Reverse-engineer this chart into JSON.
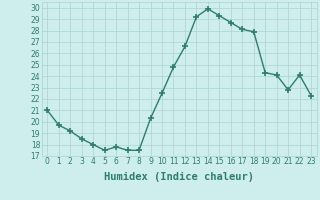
{
  "x": [
    0,
    1,
    2,
    3,
    4,
    5,
    6,
    7,
    8,
    9,
    10,
    11,
    12,
    13,
    14,
    15,
    16,
    17,
    18,
    19,
    20,
    21,
    22,
    23
  ],
  "y": [
    21,
    19.7,
    19.2,
    18.5,
    18.0,
    17.5,
    17.8,
    17.5,
    17.5,
    20.3,
    22.5,
    24.8,
    26.6,
    29.2,
    29.9,
    29.3,
    28.7,
    28.1,
    27.9,
    24.3,
    24.1,
    22.8,
    24.1,
    22.3
  ],
  "line_color": "#2e7d6b",
  "marker": "+",
  "marker_size": 4,
  "bg_color": "#ceeeed",
  "grid_color": "#aad4d0",
  "xlabel": "Humidex (Indice chaleur)",
  "xlim": [
    -0.5,
    23.5
  ],
  "ylim": [
    17,
    30.5
  ],
  "yticks": [
    17,
    18,
    19,
    20,
    21,
    22,
    23,
    24,
    25,
    26,
    27,
    28,
    29,
    30
  ],
  "xticks": [
    0,
    1,
    2,
    3,
    4,
    5,
    6,
    7,
    8,
    9,
    10,
    11,
    12,
    13,
    14,
    15,
    16,
    17,
    18,
    19,
    20,
    21,
    22,
    23
  ],
  "tick_fontsize": 5.5,
  "xlabel_fontsize": 7.5,
  "tick_color": "#2e7d6b",
  "lw": 1.0
}
